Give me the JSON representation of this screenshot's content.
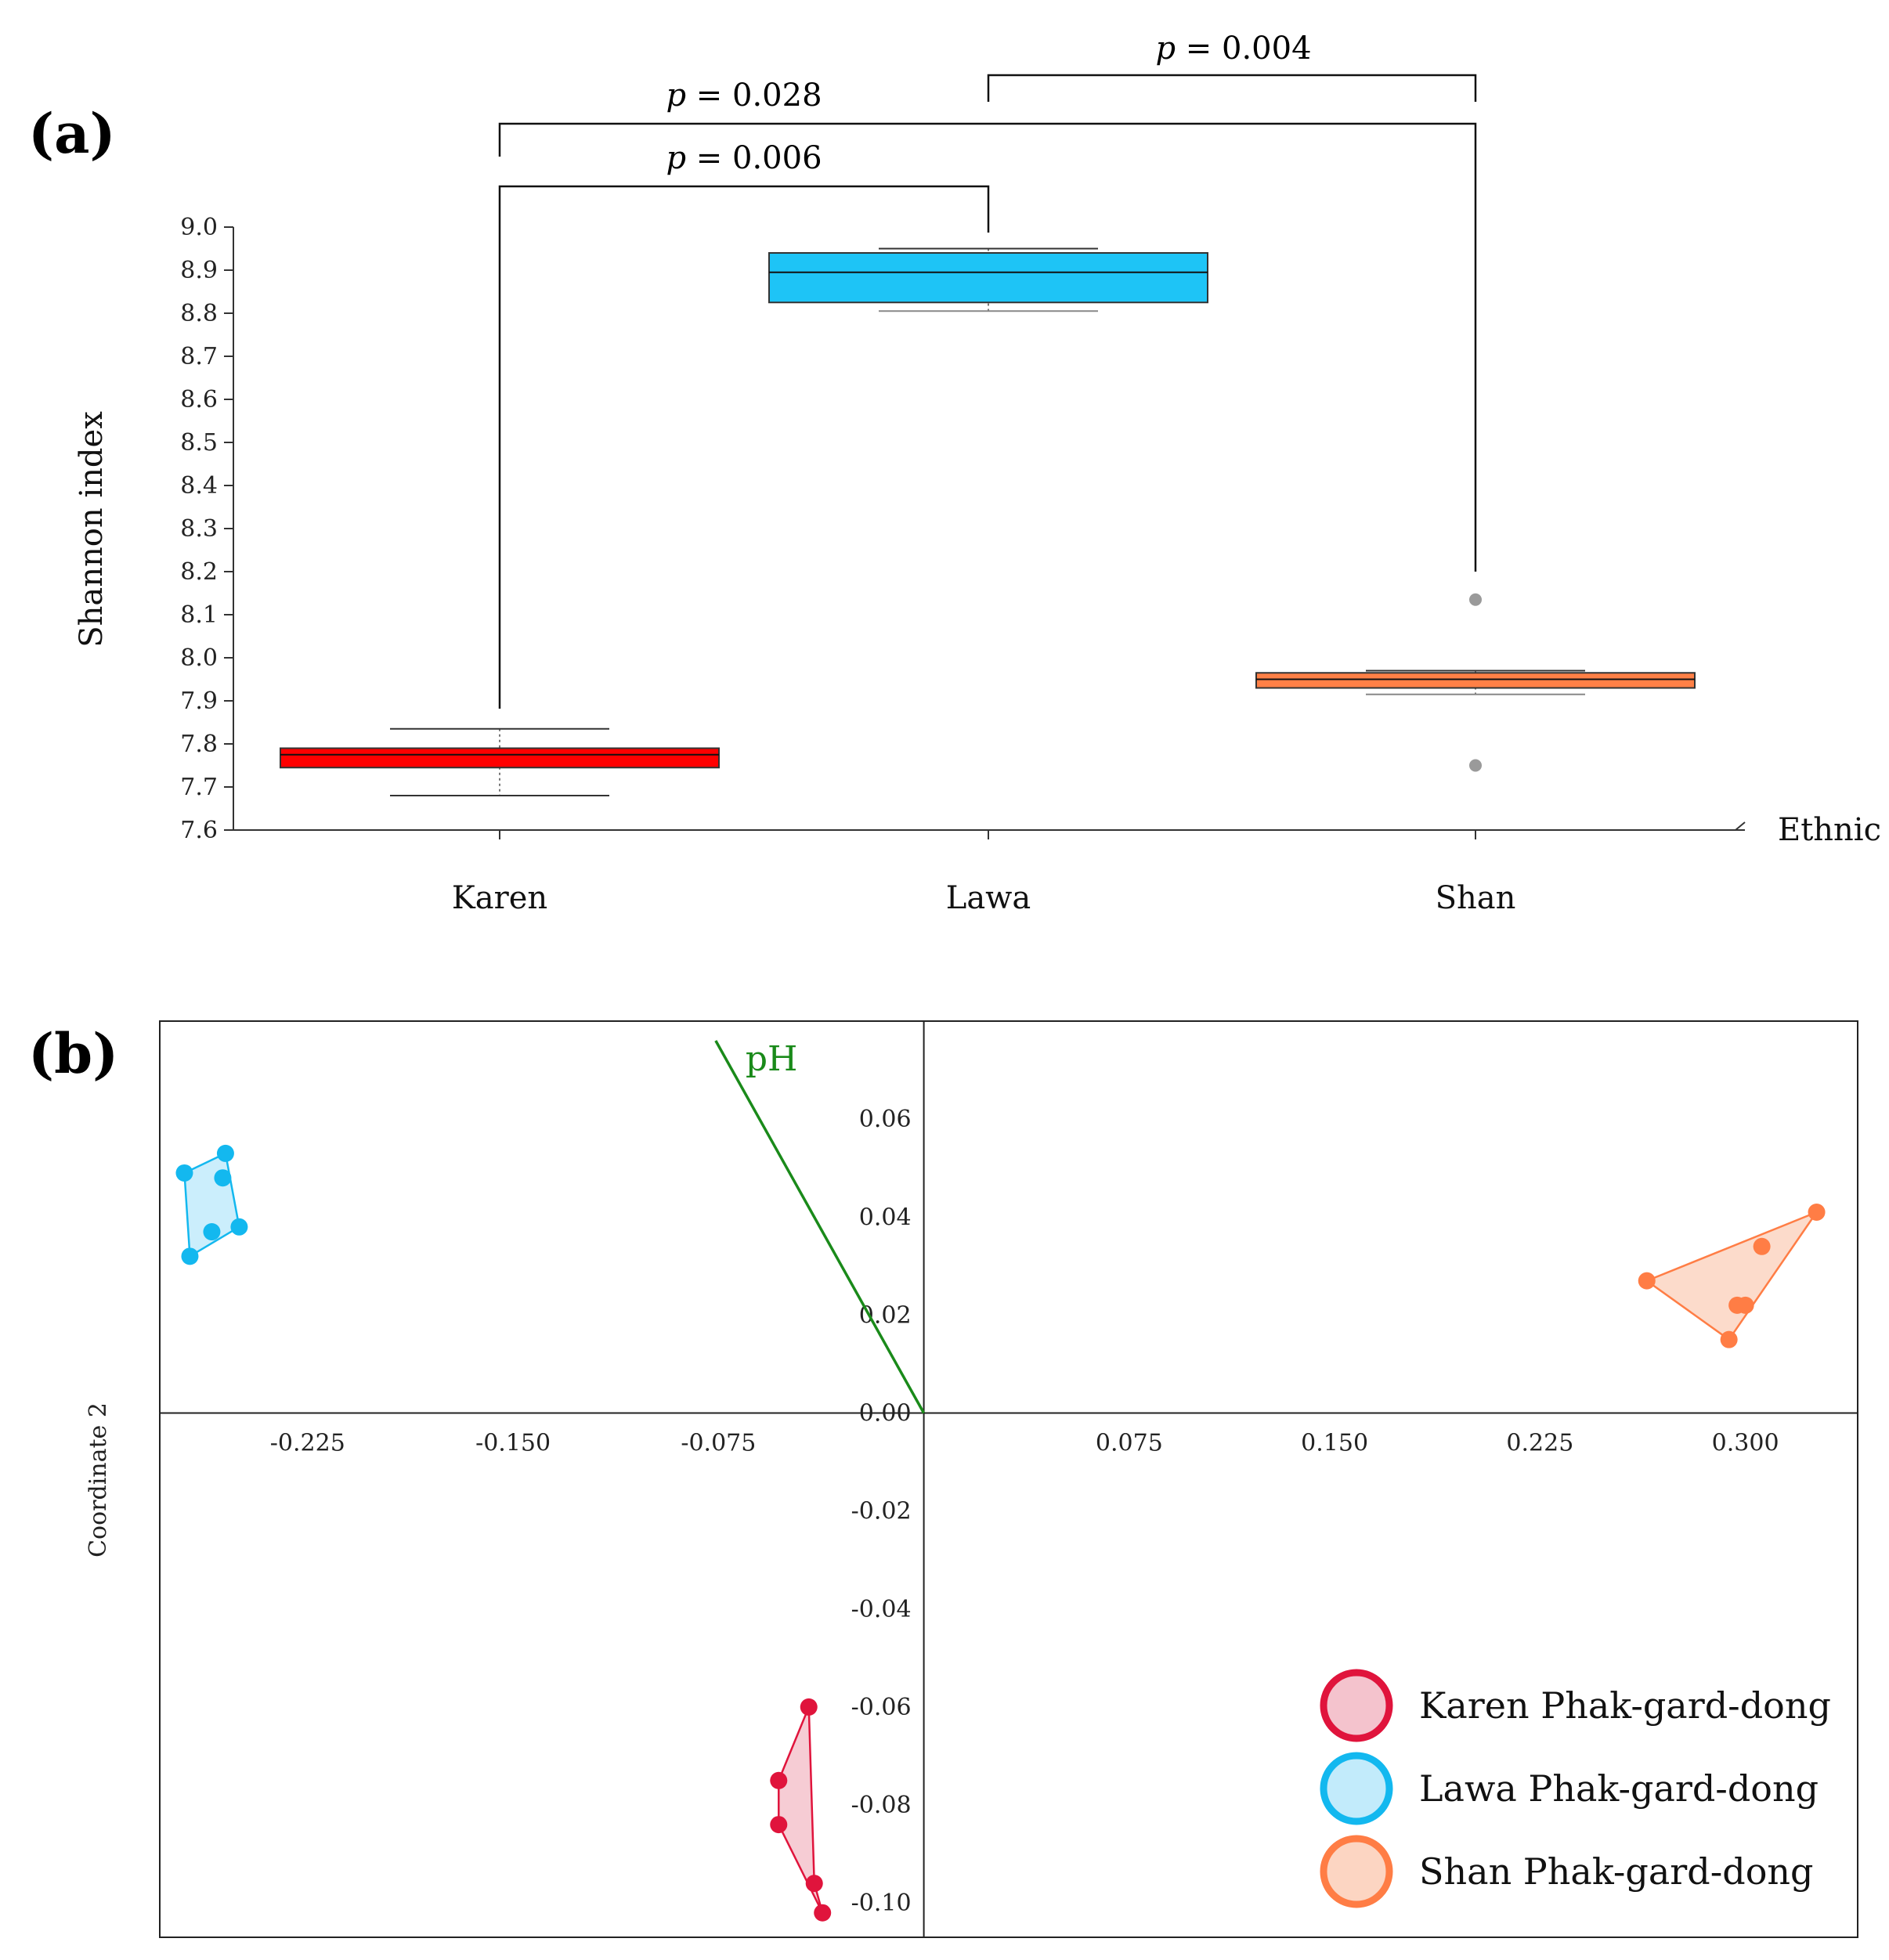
{
  "chart_data": [
    {
      "type": "box",
      "panel_label": "(a)",
      "ylabel": "Shannon index",
      "xlabel": "Ethnic",
      "ylim": [
        7.6,
        9.0
      ],
      "yticks": [
        "7.6",
        "7.7",
        "7.8",
        "7.9",
        "8.0",
        "8.1",
        "8.2",
        "8.3",
        "8.4",
        "8.5",
        "8.6",
        "8.7",
        "8.8",
        "8.9",
        "9.0"
      ],
      "categories": [
        "Karen",
        "Lawa",
        "Shan"
      ],
      "boxes": [
        {
          "name": "Karen",
          "color": "#ff0000",
          "whisker_low": 7.68,
          "q1": 7.745,
          "median": 7.775,
          "q3": 7.79,
          "whisker_high": 7.835,
          "outliers": []
        },
        {
          "name": "Lawa",
          "color": "#1ec4f6",
          "whisker_low": 8.805,
          "q1": 8.825,
          "median": 8.895,
          "q3": 8.94,
          "whisker_high": 8.95,
          "outliers": []
        },
        {
          "name": "Shan",
          "color": "#ff8046",
          "whisker_low": 7.915,
          "q1": 7.93,
          "median": 7.95,
          "q3": 7.965,
          "whisker_high": 7.97,
          "outliers": [
            8.135,
            7.75
          ]
        }
      ],
      "comparisons": [
        {
          "from": "Karen",
          "to": "Lawa",
          "label_prefix": "p",
          "label_value": " = 0.006"
        },
        {
          "from": "Karen",
          "to": "Shan",
          "label_prefix": "p",
          "label_value": " = 0.028"
        },
        {
          "from": "Lawa",
          "to": "Shan",
          "label_prefix": "p",
          "label_value": " = 0.004"
        }
      ]
    },
    {
      "type": "scatter",
      "panel_label": "(b)",
      "ylabel": "Coordinate 2",
      "xlim": [
        -0.279,
        0.341
      ],
      "ylim": [
        -0.107,
        0.08
      ],
      "xticks": [
        "-0.225",
        "-0.150",
        "-0.075",
        "0.075",
        "0.150",
        "0.225",
        "0.300"
      ],
      "xtick_values": [
        -0.225,
        -0.15,
        -0.075,
        0.075,
        0.15,
        0.225,
        0.3
      ],
      "yticks": [
        "0.06",
        "0.04",
        "0.02",
        "0.00",
        "-0.02",
        "-0.04",
        "-0.06",
        "-0.08",
        "-0.10"
      ],
      "ytick_values": [
        0.06,
        0.04,
        0.02,
        0.0,
        -0.02,
        -0.04,
        -0.06,
        -0.08,
        -0.1
      ],
      "vector": {
        "label": "pH",
        "color": "#1a8a1a",
        "x_end": -0.076,
        "y_end": 0.076
      },
      "series": [
        {
          "name": "Karen Phak-gard-dong",
          "stroke": "#e0143c",
          "fill": "#f4c3cd",
          "points": [
            [
              -0.042,
              -0.06
            ],
            [
              -0.053,
              -0.075
            ],
            [
              -0.053,
              -0.084
            ],
            [
              -0.04,
              -0.096
            ],
            [
              -0.037,
              -0.102
            ]
          ],
          "hull": [
            [
              -0.042,
              -0.06
            ],
            [
              -0.053,
              -0.075
            ],
            [
              -0.053,
              -0.084
            ],
            [
              -0.037,
              -0.102
            ],
            [
              -0.04,
              -0.096
            ]
          ]
        },
        {
          "name": "Lawa Phak-gard-dong",
          "stroke": "#13b8ef",
          "fill": "#c2ebfb",
          "points": [
            [
              -0.27,
              0.049
            ],
            [
              -0.255,
              0.053
            ],
            [
              -0.256,
              0.048
            ],
            [
              -0.26,
              0.037
            ],
            [
              -0.25,
              0.038
            ],
            [
              -0.268,
              0.032
            ]
          ],
          "hull": [
            [
              -0.27,
              0.049
            ],
            [
              -0.255,
              0.053
            ],
            [
              -0.25,
              0.038
            ],
            [
              -0.268,
              0.032
            ]
          ]
        },
        {
          "name": "Shan Phak-gard-dong",
          "stroke": "#ff7d45",
          "fill": "#fcd5c2",
          "points": [
            [
              0.264,
              0.027
            ],
            [
              0.326,
              0.041
            ],
            [
              0.306,
              0.034
            ],
            [
              0.3,
              0.022
            ],
            [
              0.297,
              0.022
            ],
            [
              0.294,
              0.015
            ]
          ],
          "hull": [
            [
              0.264,
              0.027
            ],
            [
              0.326,
              0.041
            ],
            [
              0.294,
              0.015
            ]
          ]
        }
      ]
    }
  ]
}
